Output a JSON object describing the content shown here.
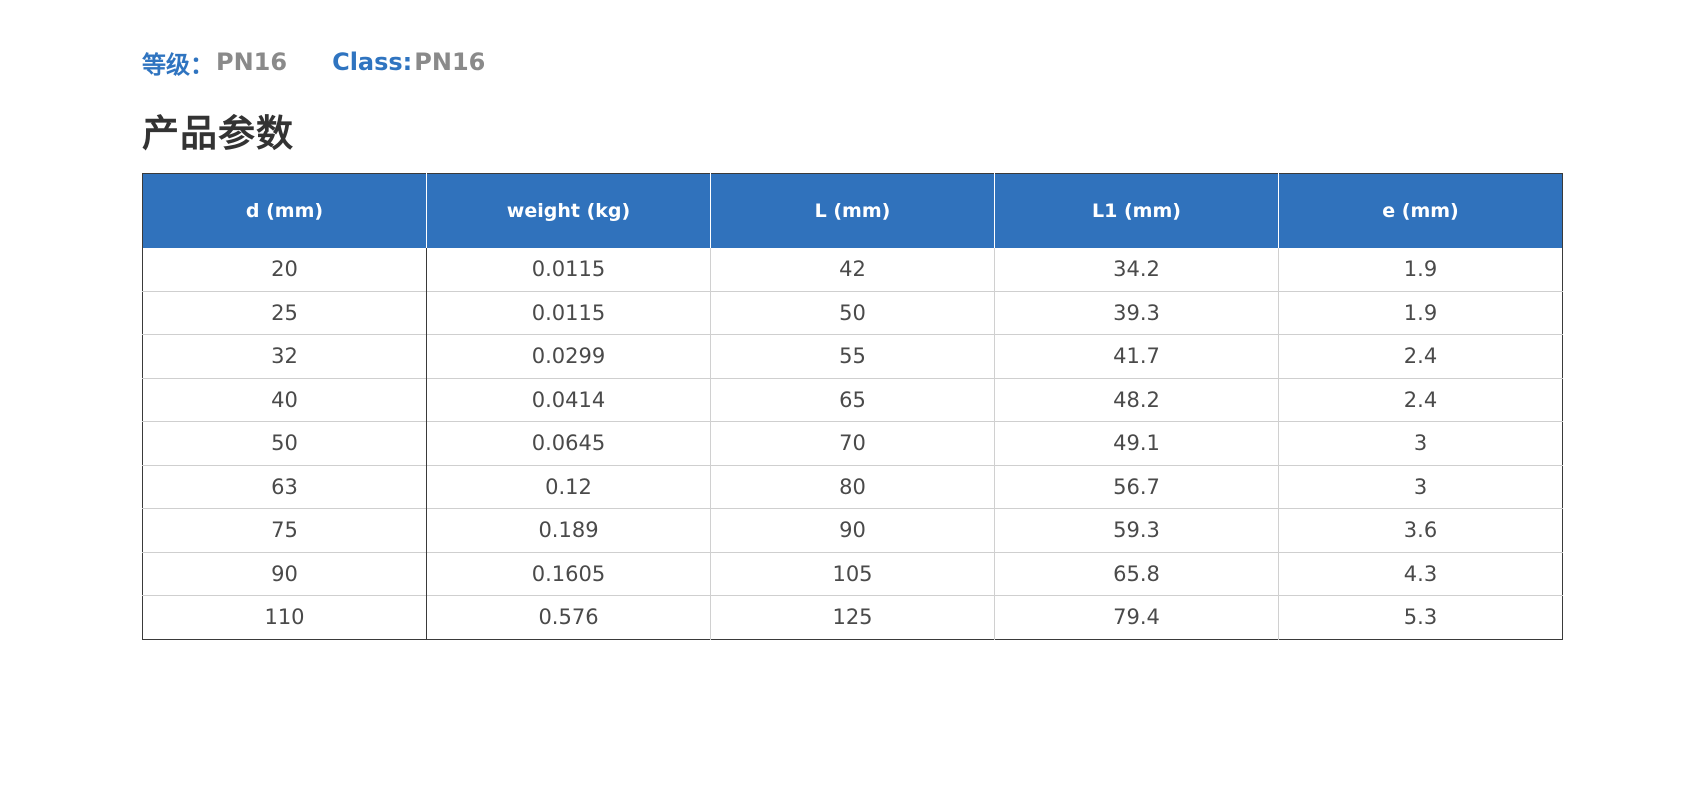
{
  "class_line": {
    "cn_label": "等级：",
    "cn_value": "PN16",
    "en_label": "Class: ",
    "en_value": "PN16"
  },
  "section_title": "产品参数",
  "table": {
    "headers": [
      "d (mm)",
      "weight (kg)",
      "L (mm)",
      "L1 (mm)",
      "e (mm)"
    ],
    "rows": [
      [
        "20",
        "0.0115",
        "42",
        "34.2",
        "1.9"
      ],
      [
        "25",
        "0.0115",
        "50",
        "39.3",
        "1.9"
      ],
      [
        "32",
        "0.0299",
        "55",
        "41.7",
        "2.4"
      ],
      [
        "40",
        "0.0414",
        "65",
        "48.2",
        "2.4"
      ],
      [
        "50",
        "0.0645",
        "70",
        "49.1",
        "3"
      ],
      [
        "63",
        "0.12",
        "80",
        "56.7",
        "3"
      ],
      [
        "75",
        "0.189",
        "90",
        "59.3",
        "3.6"
      ],
      [
        "90",
        "0.1605",
        "105",
        "65.8",
        "4.3"
      ],
      [
        "110",
        "0.576",
        "125",
        "79.4",
        "5.3"
      ]
    ]
  },
  "colors": {
    "accent_blue": "#3072bc",
    "label_blue": "#2f74c0",
    "value_gray": "#8a8a8a",
    "title_dark": "#333333"
  }
}
